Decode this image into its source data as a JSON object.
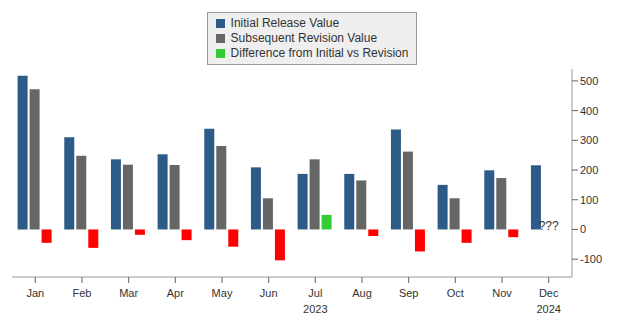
{
  "chart_data": {
    "type": "bar",
    "categories": [
      "Jan",
      "Feb",
      "Mar",
      "Apr",
      "May",
      "Jun",
      "Jul",
      "Aug",
      "Sep",
      "Oct",
      "Nov",
      "Dec"
    ],
    "series": [
      {
        "name": "Initial Release Value",
        "color": "#2c5b87",
        "values": [
          517,
          310,
          236,
          253,
          339,
          209,
          187,
          187,
          336,
          150,
          199,
          216
        ]
      },
      {
        "name": "Subsequent Revision Value",
        "color": "#666666",
        "values": [
          472,
          248,
          218,
          217,
          281,
          105,
          236,
          165,
          262,
          105,
          173,
          null
        ]
      },
      {
        "name": "Difference from Initial vs Revision",
        "color": "#33cc33",
        "colors": [
          "#ff0000",
          "#ff0000",
          "#ff0000",
          "#ff0000",
          "#ff0000",
          "#ff0000",
          "#33cc33",
          "#ff0000",
          "#ff0000",
          "#ff0000",
          "#ff0000",
          null
        ],
        "values": [
          -45,
          -62,
          -18,
          -36,
          -58,
          -104,
          49,
          -22,
          -74,
          -45,
          -26,
          null
        ]
      }
    ],
    "ylim": [
      -160,
      540
    ],
    "yticks": [
      -100,
      0,
      100,
      200,
      300,
      400,
      500
    ],
    "grid": false,
    "legend": "top",
    "x_group_labels": [
      {
        "label": "2023",
        "category": "Jul"
      },
      {
        "label": "2024",
        "category": "Dec"
      }
    ],
    "annotations": [
      {
        "text": "???",
        "category": "Dec",
        "y": 12
      }
    ]
  }
}
